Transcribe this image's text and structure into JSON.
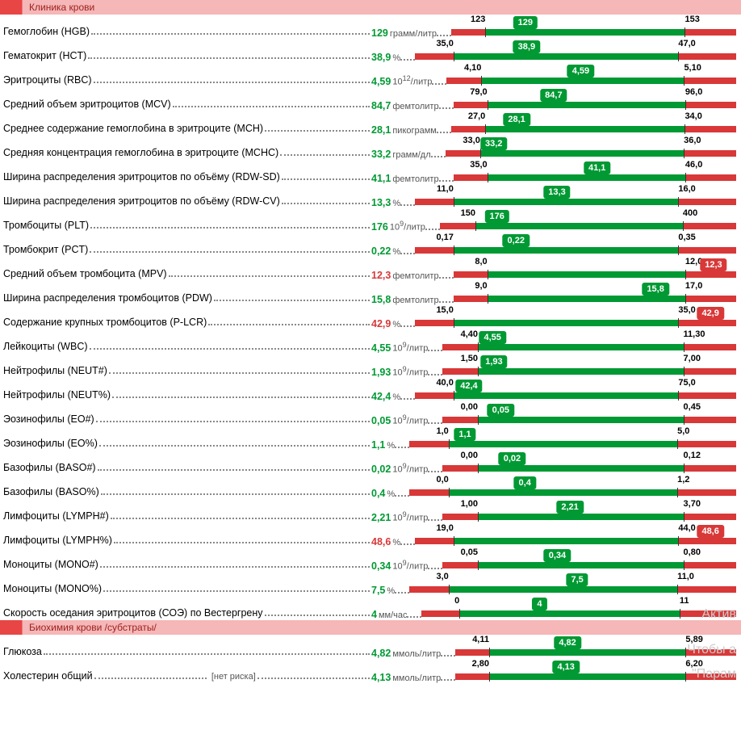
{
  "colors": {
    "ok_green": "#009933",
    "bad_red": "#d83838",
    "header_bg_light": "#f5b7b7",
    "header_bg_dark": "#e84545",
    "header_text": "#a02020",
    "dots": "#888888"
  },
  "bar_layout": {
    "min_pct": 12,
    "max_pct": 82,
    "out_right_pct": 92
  },
  "sections": [
    {
      "title": "Клиника крови",
      "rows": [
        {
          "name": "Гемоглобин (HGB)",
          "value": "129",
          "unit": "грамм/литр",
          "status": "ok",
          "min": "123",
          "max": "153",
          "minN": 123,
          "maxN": 153,
          "valN": 129
        },
        {
          "name": "Гематокрит (HCT)",
          "value": "38,9",
          "unit": "%",
          "status": "ok",
          "min": "35,0",
          "max": "47,0",
          "minN": 35.0,
          "maxN": 47.0,
          "valN": 38.9
        },
        {
          "name": "Эритроциты (RBC)",
          "value": "4,59",
          "unit_html": "10<sup>12</sup>/литр",
          "status": "ok",
          "min": "4,10",
          "max": "5,10",
          "minN": 4.1,
          "maxN": 5.1,
          "valN": 4.59
        },
        {
          "name": "Средний объем эритроцитов (MCV)",
          "value": "84,7",
          "unit": "фемтолитр",
          "status": "ok",
          "min": "79,0",
          "max": "96,0",
          "minN": 79.0,
          "maxN": 96.0,
          "valN": 84.7
        },
        {
          "name": "Среднее содержание гемоглобина в эритроците (MCH)",
          "value": "28,1",
          "unit": "пикограмм",
          "status": "ok",
          "min": "27,0",
          "max": "34,0",
          "minN": 27.0,
          "maxN": 34.0,
          "valN": 28.1
        },
        {
          "name": "Средняя концентрация гемоглобина в эритроците (MCHC)",
          "value": "33,2",
          "unit": "грамм/дл",
          "status": "ok",
          "min": "33,0",
          "max": "36,0",
          "minN": 33.0,
          "maxN": 36.0,
          "valN": 33.2
        },
        {
          "name": "Ширина распределения эритроцитов по объёму (RDW-SD)",
          "value": "41,1",
          "unit": "фемтолитр",
          "status": "ok",
          "min": "35,0",
          "max": "46,0",
          "minN": 35.0,
          "maxN": 46.0,
          "valN": 41.1
        },
        {
          "name": "Ширина распределения эритроцитов по объёму (RDW-CV)",
          "value": "13,3",
          "unit": "%",
          "status": "ok",
          "min": "11,0",
          "max": "16,0",
          "minN": 11.0,
          "maxN": 16.0,
          "valN": 13.3
        },
        {
          "name": "Тромбоциты (PLT)",
          "value": "176",
          "unit_html": "10<sup>9</sup>/литр",
          "status": "ok",
          "min": "150",
          "max": "400",
          "minN": 150,
          "maxN": 400,
          "valN": 176
        },
        {
          "name": "Тромбокрит (PCT)",
          "value": "0,22",
          "unit": "%",
          "status": "ok",
          "min": "0,17",
          "max": "0,35",
          "minN": 0.17,
          "maxN": 0.35,
          "valN": 0.22
        },
        {
          "name": "Средний объем тромбоцита (MPV)",
          "value": "12,3",
          "unit": "фемтолитр",
          "status": "bad",
          "min": "8,0",
          "max": "12,0",
          "minN": 8.0,
          "maxN": 12.0,
          "valN": 12.3,
          "out": "right"
        },
        {
          "name": "Ширина распределения тромбоцитов (PDW)",
          "value": "15,8",
          "unit": "фемтолитр",
          "status": "ok",
          "min": "9,0",
          "max": "17,0",
          "minN": 9.0,
          "maxN": 17.0,
          "valN": 15.8
        },
        {
          "name": "Содержание крупных тромбоцитов (P-LCR)",
          "value": "42,9",
          "unit": "%",
          "status": "bad",
          "min": "15,0",
          "max": "35,0",
          "minN": 15.0,
          "maxN": 35.0,
          "valN": 42.9,
          "out": "right"
        },
        {
          "name": "Лейкоциты (WBC)",
          "value": "4,55",
          "unit_html": "10<sup>9</sup>/литр",
          "status": "ok",
          "min": "4,40",
          "max": "11,30",
          "minN": 4.4,
          "maxN": 11.3,
          "valN": 4.55
        },
        {
          "name": "Нейтрофилы (NEUT#)",
          "value": "1,93",
          "unit_html": "10<sup>9</sup>/литр",
          "status": "ok",
          "min": "1,50",
          "max": "7,00",
          "minN": 1.5,
          "maxN": 7.0,
          "valN": 1.93
        },
        {
          "name": "Нейтрофилы (NEUT%)",
          "value": "42,4",
          "unit": "%",
          "status": "ok",
          "min": "40,0",
          "max": "75,0",
          "minN": 40.0,
          "maxN": 75.0,
          "valN": 42.4
        },
        {
          "name": "Эозинофилы (EO#)",
          "value": "0,05",
          "unit_html": "10<sup>9</sup>/литр",
          "status": "ok",
          "min": "0,00",
          "max": "0,45",
          "minN": 0.0,
          "maxN": 0.45,
          "valN": 0.05
        },
        {
          "name": "Эозинофилы (EO%)",
          "value": "1,1",
          "unit": "%",
          "status": "ok",
          "min": "1,0",
          "max": "5,0",
          "minN": 1.0,
          "maxN": 5.0,
          "valN": 1.1
        },
        {
          "name": "Базофилы (BASO#)",
          "value": "0,02",
          "unit_html": "10<sup>9</sup>/литр",
          "status": "ok",
          "min": "0,00",
          "max": "0,12",
          "minN": 0.0,
          "maxN": 0.12,
          "valN": 0.02
        },
        {
          "name": "Базофилы (BASO%)",
          "value": "0,4",
          "unit": "%",
          "status": "ok",
          "min": "0,0",
          "max": "1,2",
          "minN": 0.0,
          "maxN": 1.2,
          "valN": 0.4
        },
        {
          "name": "Лимфоциты (LYMPH#)",
          "value": "2,21",
          "unit_html": "10<sup>9</sup>/литр",
          "status": "ok",
          "min": "1,00",
          "max": "3,70",
          "minN": 1.0,
          "maxN": 3.7,
          "valN": 2.21
        },
        {
          "name": "Лимфоциты (LYMPH%)",
          "value": "48,6",
          "unit": "%",
          "status": "bad",
          "min": "19,0",
          "max": "44,0",
          "minN": 19.0,
          "maxN": 44.0,
          "valN": 48.6,
          "out": "right"
        },
        {
          "name": "Моноциты (MONO#)",
          "value": "0,34",
          "unit_html": "10<sup>9</sup>/литр",
          "status": "ok",
          "min": "0,05",
          "max": "0,80",
          "minN": 0.05,
          "maxN": 0.8,
          "valN": 0.34
        },
        {
          "name": "Моноциты (MONO%)",
          "value": "7,5",
          "unit": "%",
          "status": "ok",
          "min": "3,0",
          "max": "11,0",
          "minN": 3.0,
          "maxN": 11.0,
          "valN": 7.5
        },
        {
          "name": "Скорость оседания эритроцитов (СОЭ) по Вестергрену",
          "value": "4",
          "unit": "мм/час",
          "status": "ok",
          "min": "0",
          "max": "11",
          "minN": 0,
          "maxN": 11,
          "valN": 4
        }
      ]
    },
    {
      "title": "Биохимия крови /субстраты/",
      "rows": [
        {
          "name": "Глюкоза",
          "value": "4,82",
          "unit": "ммоль/литр",
          "status": "ok",
          "min": "4,11",
          "max": "5,89",
          "minN": 4.11,
          "maxN": 5.89,
          "valN": 4.82
        },
        {
          "name": "Холестерин общий",
          "note": "[нет риска]",
          "value": "4,13",
          "unit": "ммоль/литр",
          "status": "ok",
          "min": "2,80",
          "max": "6,20",
          "minN": 2.8,
          "maxN": 6.2,
          "valN": 4.13
        }
      ]
    }
  ],
  "watermarks": [
    "Актив",
    "Чтобы а",
    "\"Парам"
  ]
}
